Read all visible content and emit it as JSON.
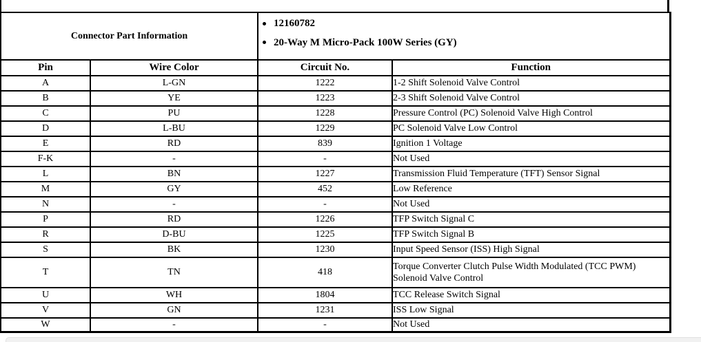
{
  "connector_info": {
    "title": "Connector Part Information",
    "bullets": [
      "12160782",
      "20-Way M Micro-Pack 100W Series (GY)"
    ]
  },
  "table": {
    "headers": [
      "Pin",
      "Wire Color",
      "Circuit No.",
      "Function"
    ],
    "rows": [
      {
        "pin": "A",
        "wire_color": "L-GN",
        "circuit": "1222",
        "function": "1-2 Shift Solenoid Valve Control"
      },
      {
        "pin": "B",
        "wire_color": "YE",
        "circuit": "1223",
        "function": "2-3 Shift Solenoid Valve Control"
      },
      {
        "pin": "C",
        "wire_color": "PU",
        "circuit": "1228",
        "function": "Pressure Control (PC) Solenoid Valve High Control"
      },
      {
        "pin": "D",
        "wire_color": "L-BU",
        "circuit": "1229",
        "function": "PC Solenoid Valve Low Control"
      },
      {
        "pin": "E",
        "wire_color": "RD",
        "circuit": "839",
        "function": "Ignition 1 Voltage"
      },
      {
        "pin": "F-K",
        "wire_color": "-",
        "circuit": "-",
        "function": "Not Used"
      },
      {
        "pin": "L",
        "wire_color": "BN",
        "circuit": "1227",
        "function": "Transmission Fluid Temperature (TFT) Sensor Signal"
      },
      {
        "pin": "M",
        "wire_color": "GY",
        "circuit": "452",
        "function": "Low Reference"
      },
      {
        "pin": "N",
        "wire_color": "-",
        "circuit": "-",
        "function": "Not Used"
      },
      {
        "pin": "P",
        "wire_color": "RD",
        "circuit": "1226",
        "function": "TFP Switch Signal C"
      },
      {
        "pin": "R",
        "wire_color": "D-BU",
        "circuit": "1225",
        "function": "TFP Switch Signal B"
      },
      {
        "pin": "S",
        "wire_color": "BK",
        "circuit": "1230",
        "function": "Input Speed Sensor (ISS) High Signal"
      },
      {
        "pin": "T",
        "wire_color": "TN",
        "circuit": "418",
        "function": "Torque Converter Clutch Pulse Width Modulated (TCC PWM) Solenoid Valve Control"
      },
      {
        "pin": "U",
        "wire_color": "WH",
        "circuit": "1804",
        "function": "TCC Release Switch Signal"
      },
      {
        "pin": "V",
        "wire_color": "GN",
        "circuit": "1231",
        "function": "ISS Low Signal"
      },
      {
        "pin": "W",
        "wire_color": "-",
        "circuit": "-",
        "function": "Not Used"
      }
    ]
  },
  "colors": {
    "text": "#000000",
    "border": "#000000",
    "background": "#ffffff",
    "scrollbar_track": "#f1f1f1"
  }
}
